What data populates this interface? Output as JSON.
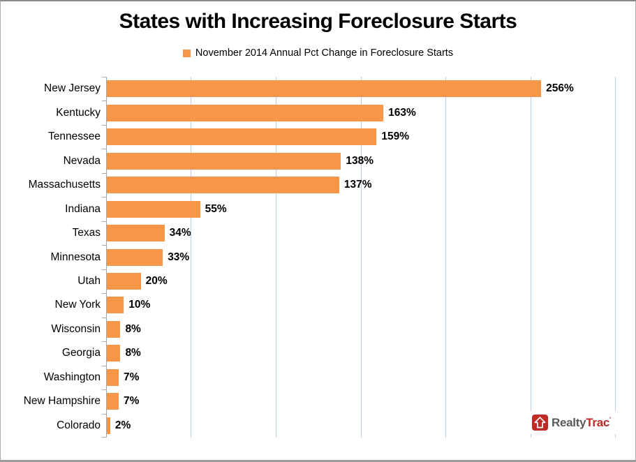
{
  "title": "States with Increasing Foreclosure Starts",
  "legend": {
    "label": "November 2014 Annual Pct Change in Foreclosure Starts",
    "marker_color": "#F79646"
  },
  "colors": {
    "bar": "#F79646",
    "gridline": "#B9CDE9",
    "axis": "#A6A6A6",
    "text": "#000000",
    "logo_red": "#BE2B26",
    "logo_gray": "#58595B"
  },
  "logo": {
    "realty": "Realty",
    "trac": "Trac",
    "trademark": "'",
    "icon": "house-up-arrow-icon"
  },
  "chart_data": {
    "type": "bar",
    "orientation": "horizontal",
    "title": "States with Increasing Foreclosure Starts",
    "series_name": "November 2014 Annual Pct Change in Foreclosure Starts",
    "categories": [
      "New Jersey",
      "Kentucky",
      "Tennessee",
      "Nevada",
      "Massachusetts",
      "Indiana",
      "Texas",
      "Minnesota",
      "Utah",
      "New York",
      "Wisconsin",
      "Georgia",
      "Washington",
      "New Hampshire",
      "Colorado"
    ],
    "values": [
      256,
      163,
      159,
      138,
      137,
      55,
      34,
      33,
      20,
      10,
      8,
      8,
      7,
      7,
      2
    ],
    "value_labels": [
      "256%",
      "163%",
      "159%",
      "138%",
      "137%",
      "55%",
      "34%",
      "33%",
      "20%",
      "10%",
      "8%",
      "8%",
      "7%",
      "7%",
      "2%"
    ],
    "xlabel": "",
    "ylabel": "",
    "xlim": [
      0,
      300
    ],
    "gridline_interval": 50,
    "grid": true,
    "legend_position": "top",
    "data_labels": true
  }
}
